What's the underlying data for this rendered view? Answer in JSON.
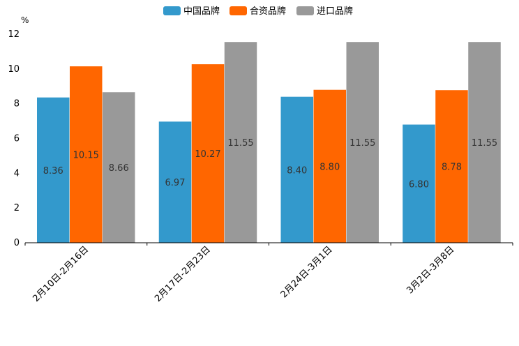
{
  "chart_data": {
    "type": "bar",
    "title": "",
    "xlabel": "",
    "ylabel": "%",
    "ylim": [
      0,
      12
    ],
    "yticks": [
      0,
      2,
      4,
      6,
      8,
      10,
      12
    ],
    "grid": false,
    "legend_position": "top-center",
    "categories": [
      "2月10日-2月16日",
      "2月17日-2月23日",
      "2月24日-3月1日",
      "3月2日-3月8日"
    ],
    "series": [
      {
        "name": "中国品牌",
        "color": "#3399cc",
        "values": [
          8.36,
          6.97,
          8.4,
          6.8
        ],
        "labels": [
          "8.36",
          "6.97",
          "8.40",
          "6.80"
        ]
      },
      {
        "name": "合资品牌",
        "color": "#ff6600",
        "values": [
          10.15,
          10.27,
          8.8,
          8.78
        ],
        "labels": [
          "10.15",
          "10.27",
          "8.80",
          "8.78"
        ]
      },
      {
        "name": "进口品牌",
        "color": "#999999",
        "values": [
          8.66,
          11.55,
          11.55,
          11.55
        ],
        "labels": [
          "8.66",
          "11.55",
          "11.55",
          "11.55"
        ]
      }
    ]
  }
}
